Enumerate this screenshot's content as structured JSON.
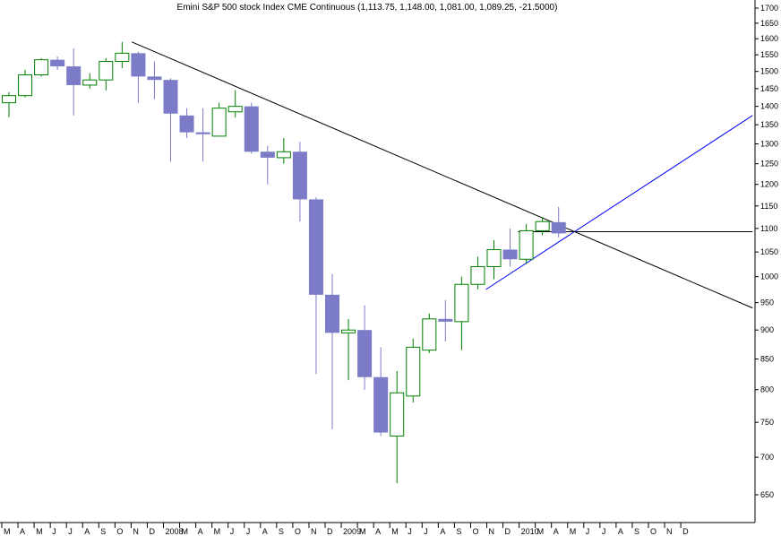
{
  "chart_data": {
    "type": "candlestick",
    "title": "Emini S&P 500 stock Index CME Continuous (1,113.75, 1,148.00, 1,081.00, 1,089.25, -21.5000)",
    "y_scale": "log",
    "ylim": [
      620,
      1720
    ],
    "y_ticks": [
      650,
      700,
      750,
      800,
      850,
      900,
      950,
      1000,
      1050,
      1100,
      1150,
      1200,
      1250,
      1300,
      1350,
      1400,
      1450,
      1500,
      1550,
      1600,
      1650,
      1700
    ],
    "x_ticks": [
      "M",
      "A",
      "M",
      "J",
      "J",
      "A",
      "S",
      "O",
      "N",
      "D",
      "2008",
      "M",
      "A",
      "M",
      "J",
      "J",
      "A",
      "S",
      "O",
      "N",
      "D",
      "2009",
      "M",
      "A",
      "M",
      "J",
      "J",
      "A",
      "S",
      "O",
      "N",
      "D",
      "2010",
      "M",
      "A",
      "M",
      "J",
      "J",
      "A",
      "S",
      "O",
      "N",
      "D"
    ],
    "up_color": "#008000",
    "down_color": "#7b7bc8",
    "candles": [
      {
        "o": 1410,
        "h": 1440,
        "l": 1370,
        "c": 1430
      },
      {
        "o": 1430,
        "h": 1505,
        "l": 1425,
        "c": 1490
      },
      {
        "o": 1490,
        "h": 1540,
        "l": 1485,
        "c": 1535
      },
      {
        "o": 1535,
        "h": 1545,
        "l": 1505,
        "c": 1515
      },
      {
        "o": 1515,
        "h": 1570,
        "l": 1375,
        "c": 1460
      },
      {
        "o": 1460,
        "h": 1495,
        "l": 1450,
        "c": 1475
      },
      {
        "o": 1475,
        "h": 1540,
        "l": 1445,
        "c": 1530
      },
      {
        "o": 1530,
        "h": 1590,
        "l": 1510,
        "c": 1555
      },
      {
        "o": 1555,
        "h": 1560,
        "l": 1410,
        "c": 1485
      },
      {
        "o": 1485,
        "h": 1530,
        "l": 1420,
        "c": 1475
      },
      {
        "o": 1475,
        "h": 1480,
        "l": 1255,
        "c": 1380
      },
      {
        "o": 1375,
        "h": 1395,
        "l": 1315,
        "c": 1330
      },
      {
        "o": 1330,
        "h": 1395,
        "l": 1255,
        "c": 1325
      },
      {
        "o": 1320,
        "h": 1410,
        "l": 1320,
        "c": 1395
      },
      {
        "o": 1385,
        "h": 1445,
        "l": 1370,
        "c": 1400
      },
      {
        "o": 1400,
        "h": 1410,
        "l": 1275,
        "c": 1280
      },
      {
        "o": 1280,
        "h": 1295,
        "l": 1200,
        "c": 1265
      },
      {
        "o": 1265,
        "h": 1315,
        "l": 1250,
        "c": 1280
      },
      {
        "o": 1280,
        "h": 1305,
        "l": 1115,
        "c": 1165
      },
      {
        "o": 1165,
        "h": 1170,
        "l": 825,
        "c": 965
      },
      {
        "o": 965,
        "h": 1005,
        "l": 740,
        "c": 895
      },
      {
        "o": 895,
        "h": 920,
        "l": 815,
        "c": 900
      },
      {
        "o": 900,
        "h": 945,
        "l": 800,
        "c": 820
      },
      {
        "o": 820,
        "h": 870,
        "l": 730,
        "c": 735
      },
      {
        "o": 730,
        "h": 830,
        "l": 665,
        "c": 795
      },
      {
        "o": 790,
        "h": 885,
        "l": 780,
        "c": 870
      },
      {
        "o": 865,
        "h": 930,
        "l": 860,
        "c": 920
      },
      {
        "o": 920,
        "h": 955,
        "l": 880,
        "c": 915
      },
      {
        "o": 915,
        "h": 1000,
        "l": 865,
        "c": 985
      },
      {
        "o": 985,
        "h": 1040,
        "l": 975,
        "c": 1020
      },
      {
        "o": 1020,
        "h": 1075,
        "l": 995,
        "c": 1055
      },
      {
        "o": 1055,
        "h": 1100,
        "l": 1020,
        "c": 1035
      },
      {
        "o": 1035,
        "h": 1110,
        "l": 1025,
        "c": 1095
      },
      {
        "o": 1095,
        "h": 1125,
        "l": 1085,
        "c": 1115
      },
      {
        "o": 1113.75,
        "h": 1148,
        "l": 1081,
        "c": 1089.25
      }
    ],
    "trendlines": [
      {
        "color": "#000000",
        "from": {
          "bar": 7.6,
          "price": 1590
        },
        "to": {
          "bar": 46,
          "price": 940
        }
      },
      {
        "color": "#0000ff",
        "from": {
          "bar": 29.5,
          "price": 975
        },
        "to": {
          "bar": 46,
          "price": 1375
        }
      },
      {
        "color": "#000000",
        "from": {
          "bar": 31.5,
          "price": 1093
        },
        "to": {
          "bar": 46,
          "price": 1093
        }
      }
    ]
  }
}
